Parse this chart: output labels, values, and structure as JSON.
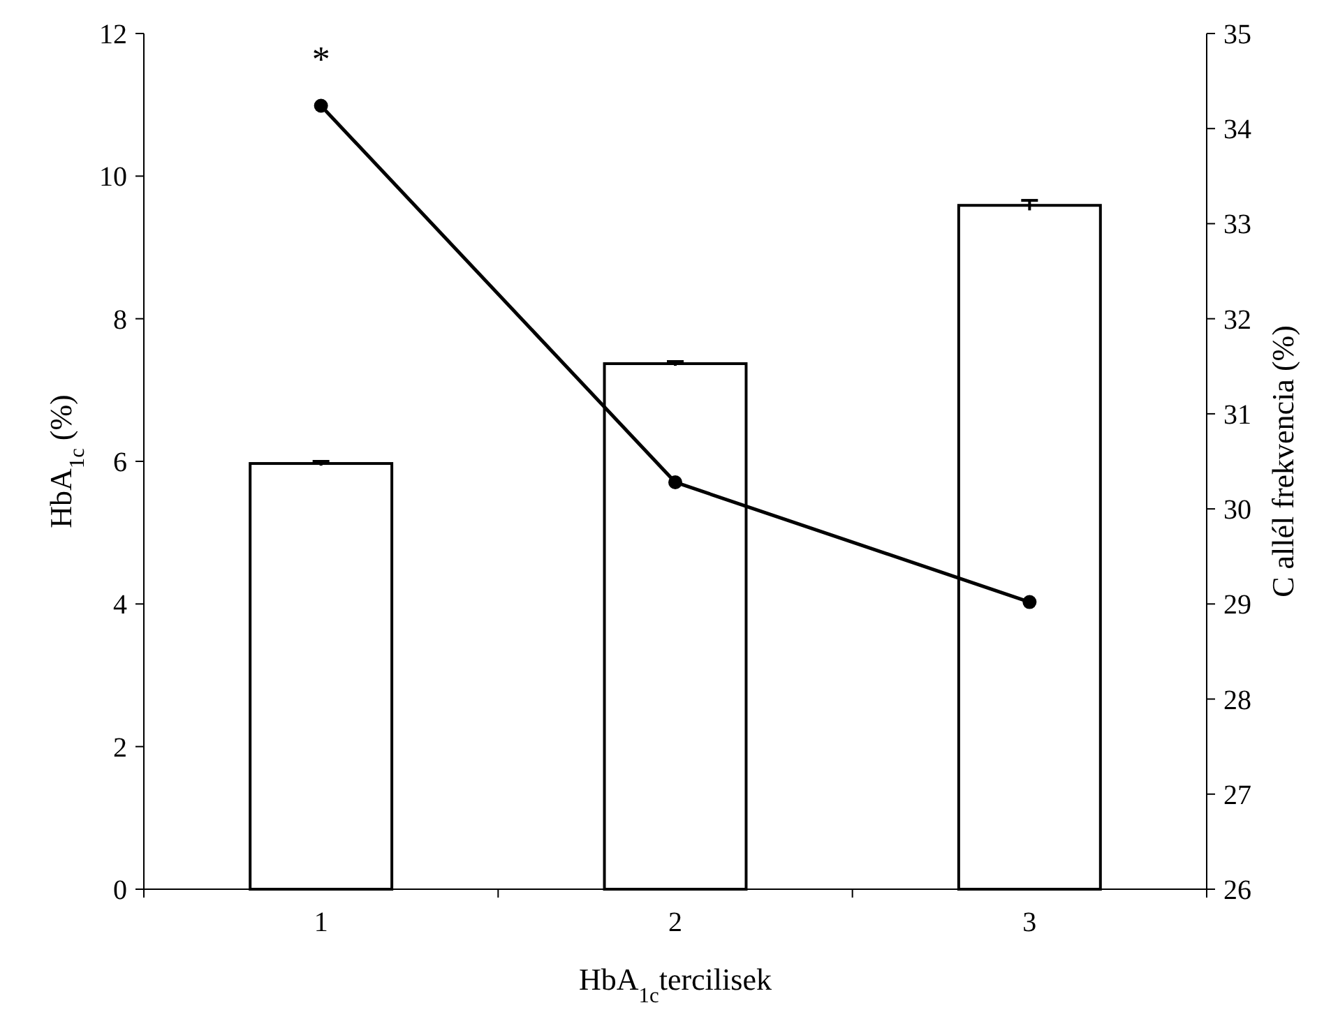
{
  "chart_data": {
    "type": "bar",
    "xlabel": "HbA$_{1c}$tercilisek",
    "ylabel": "HbA$_{1c}$ (%)",
    "y2label": "C allél frekvencia (%)",
    "categories": [
      "1",
      "2",
      "3"
    ],
    "series": [
      {
        "color": "#ffffff",
        "values": [
          5.97,
          7.37,
          9.59
        ],
        "errors": [
          0.03,
          0.03,
          0.07
        ]
      },
      {
        "type": "line",
        "axis": "y2",
        "color": "#000000",
        "values": [
          34.24,
          30.28,
          29.02
        ],
        "marker": "circle",
        "line_style": "solid"
      }
    ],
    "ylim": [
      0,
      12
    ],
    "yticks": [
      0,
      2,
      4,
      6,
      8,
      10,
      12
    ],
    "y2lim": [
      26,
      35
    ],
    "y2ticks": [
      26,
      27,
      28,
      29,
      30,
      31,
      32,
      33,
      34,
      35
    ],
    "annotations": [
      "*"
    ],
    "grid": false
  }
}
